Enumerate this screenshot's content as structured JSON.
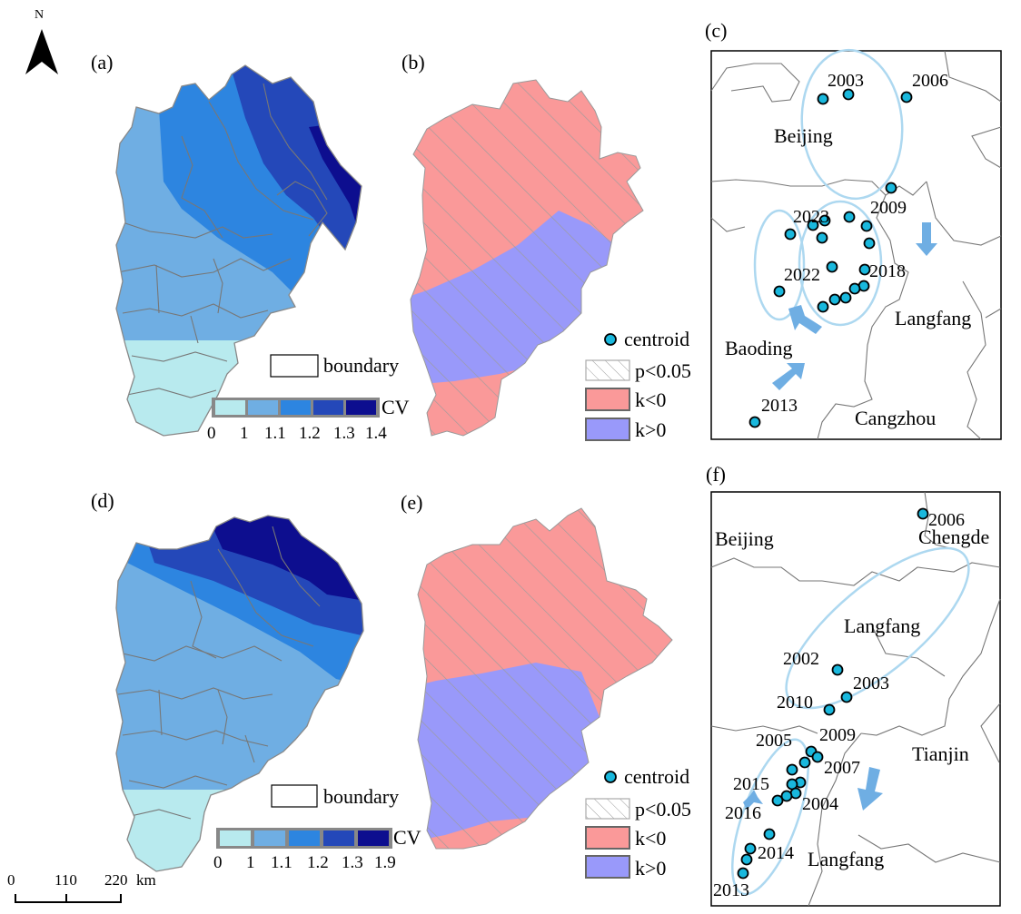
{
  "north_arrow": {
    "label": "N"
  },
  "scale_bar": {
    "ticks": [
      "0",
      "110",
      "220"
    ],
    "unit": "km"
  },
  "panels": {
    "a": "(a)",
    "b": "(b)",
    "c": "(c)",
    "d": "(d)",
    "e": "(e)",
    "f": "(f)"
  },
  "legend_top_left": {
    "boundary": "boundary",
    "cv_title": "CV",
    "cv_ticks": [
      "0",
      "1",
      "1.1",
      "1.2",
      "1.3",
      "1.4"
    ],
    "colors": [
      "#b8eaee",
      "#6faee3",
      "#2d85e0",
      "#2448b9",
      "#0d0e8f"
    ]
  },
  "legend_bottom_left": {
    "boundary": "boundary",
    "cv_title": "CV",
    "cv_ticks": [
      "0",
      "1",
      "1.1",
      "1.2",
      "1.3",
      "1.9"
    ],
    "colors": [
      "#b8eaee",
      "#6faee3",
      "#2d85e0",
      "#2448b9",
      "#0d0e8f"
    ]
  },
  "legend_top_mid": {
    "centroid": "centroid",
    "significance": "p<0.05",
    "k_neg": "k<0",
    "k_pos": "k>0",
    "k_neg_color": "#fa9999",
    "k_pos_color": "#9999fa"
  },
  "legend_bottom_mid": {
    "centroid": "centroid",
    "significance": "p<0.05",
    "k_neg": "k<0",
    "k_pos": "k>0"
  },
  "panel_c": {
    "places": [
      "Beijing",
      "Langfang",
      "Baoding",
      "Cangzhou"
    ],
    "years": [
      "2003",
      "2006",
      "2009",
      "2023",
      "2022",
      "2018",
      "2013"
    ],
    "centroid_color": "#19b8dd"
  },
  "panel_f": {
    "places": [
      "Beijing",
      "Chengde",
      "Langfang",
      "Tianjin",
      "Langfang"
    ],
    "years": [
      "2006",
      "2002",
      "2003",
      "2010",
      "2005",
      "2009",
      "2007",
      "2015",
      "2016",
      "2004",
      "2014",
      "2013"
    ]
  }
}
